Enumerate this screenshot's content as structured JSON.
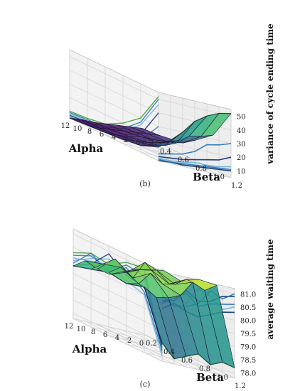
{
  "chart_data": [
    {
      "type": "surface3d",
      "panel_label": "(b)",
      "xlabel": "Alpha",
      "ylabel": "Beta",
      "zlabel": "variance of cycle ending time",
      "x_ticks": [
        "12",
        "10",
        "8",
        "6",
        "4",
        "2",
        "0"
      ],
      "y_ticks": [
        "0.2",
        "0.4",
        "0.6",
        "0.8",
        "1.0",
        "1.2"
      ],
      "z_ticks": [
        "10",
        "20",
        "30",
        "40",
        "50"
      ],
      "xlim": [
        0,
        12
      ],
      "ylim": [
        0.2,
        1.2
      ],
      "zlim": [
        5,
        55
      ],
      "alpha_values": [
        0,
        2,
        4,
        6,
        8,
        10,
        12
      ],
      "beta_values": [
        0.2,
        0.4,
        0.6,
        0.8,
        1.0,
        1.2
      ],
      "z_grid": [
        [
          10,
          11,
          13,
          20,
          30,
          52
        ],
        [
          9,
          10,
          11,
          16,
          27,
          50
        ],
        [
          8,
          9,
          10,
          14,
          25,
          46
        ],
        [
          7,
          8,
          10,
          12,
          18,
          40
        ],
        [
          6,
          7,
          8,
          10,
          14,
          30
        ],
        [
          6,
          6,
          7,
          9,
          12,
          22
        ],
        [
          5,
          6,
          7,
          8,
          10,
          15
        ]
      ],
      "colormap": "viridis",
      "projection_color_bands": [
        "#08306b",
        "#2171b5",
        "#6baed6"
      ],
      "projection_green_color": "#2ca02c"
    },
    {
      "type": "surface3d",
      "panel_label": "(c)",
      "xlabel": "Alpha",
      "ylabel": "Beta",
      "zlabel": "average waiting time",
      "x_ticks": [
        "12",
        "10",
        "8",
        "6",
        "4",
        "2",
        "0"
      ],
      "y_ticks": [
        "0.2",
        "0.4",
        "0.6",
        "0.8",
        "1.0",
        "1.2"
      ],
      "z_ticks": [
        "78.0",
        "78.5",
        "79.0",
        "79.5",
        "80.0",
        "80.5",
        "81.0"
      ],
      "xlim": [
        0,
        12
      ],
      "ylim": [
        0.2,
        1.2
      ],
      "zlim": [
        77.8,
        81.2
      ],
      "alpha_values": [
        0,
        2,
        4,
        6,
        8,
        10,
        12
      ],
      "beta_values": [
        0.2,
        0.4,
        0.6,
        0.8,
        1.0,
        1.2
      ],
      "z_grid": [
        [
          80.3,
          80.6,
          80.5,
          80.9,
          81.0,
          78.2
        ],
        [
          80.2,
          80.5,
          80.3,
          80.8,
          80.7,
          78.3
        ],
        [
          80.0,
          80.4,
          80.7,
          80.5,
          80.9,
          78.1
        ],
        [
          79.8,
          80.2,
          80.9,
          80.4,
          80.3,
          78.4
        ],
        [
          79.9,
          80.6,
          80.2,
          80.7,
          80.1,
          78.2
        ],
        [
          80.1,
          80.3,
          80.5,
          80.2,
          80.0,
          78.0
        ],
        [
          79.8,
          80.0,
          80.2,
          80.1,
          80.3,
          78.5
        ]
      ],
      "colormap": "viridis",
      "projection_color_bands": [
        "#08306b",
        "#2171b5",
        "#6baed6"
      ],
      "projection_green_color": "#2ca02c"
    }
  ]
}
